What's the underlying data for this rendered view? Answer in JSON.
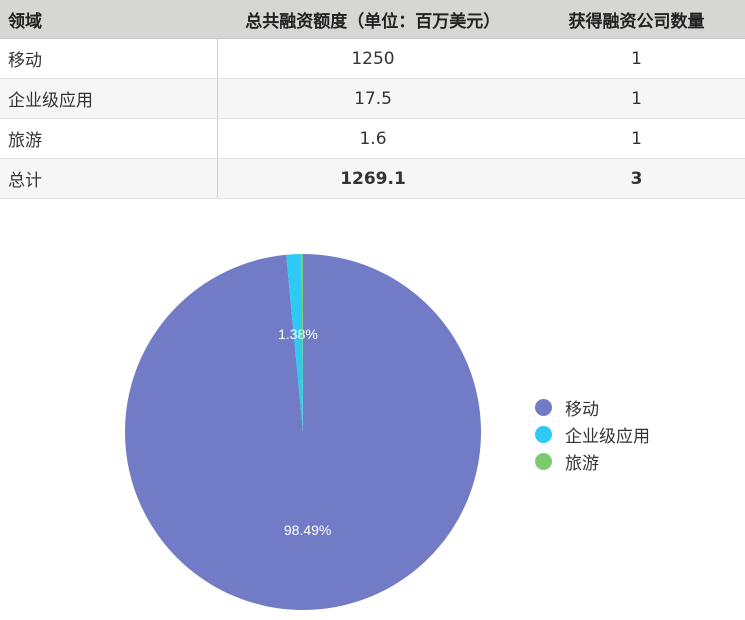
{
  "table": {
    "headers": [
      "领域",
      "总共融资额度（单位：百万美元）",
      "获得融资公司数量"
    ],
    "rows": [
      [
        "移动",
        "1250",
        "1"
      ],
      [
        "企业级应用",
        "17.5",
        "1"
      ],
      [
        "旅游",
        "1.6",
        "1"
      ],
      [
        "总计",
        "1269.1",
        "3"
      ]
    ]
  },
  "chart_data": {
    "type": "pie",
    "categories": [
      "移动",
      "企业级应用",
      "旅游"
    ],
    "values": [
      1250,
      17.5,
      1.6
    ],
    "data_labels": [
      "98.49%",
      "1.38%",
      ""
    ],
    "colors": [
      "#717bc6",
      "#2ec9f5",
      "#7ccc6f"
    ],
    "start_angle": "top",
    "direction": "clockwise",
    "legend": {
      "placement": "right",
      "entries": [
        "移动",
        "企业级应用",
        "旅游"
      ]
    }
  }
}
